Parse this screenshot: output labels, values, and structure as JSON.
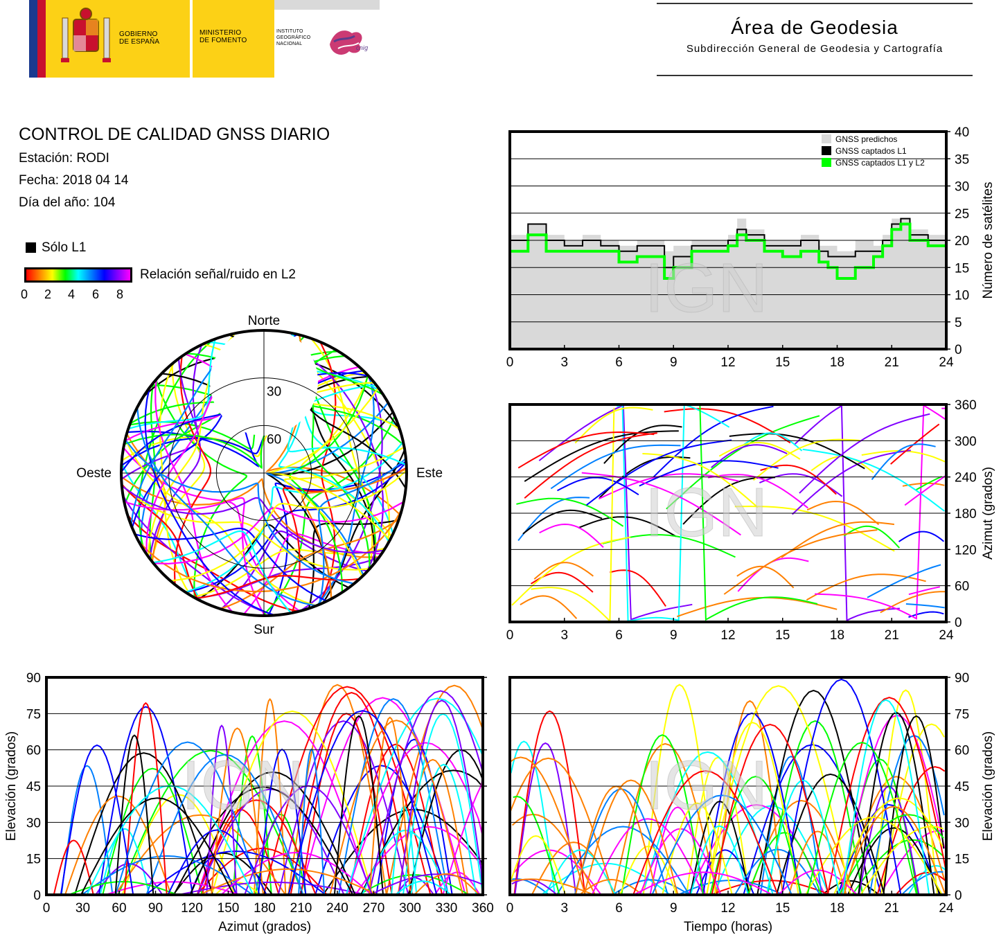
{
  "header": {
    "gov_logo": {
      "gobierno": "GOBIERNO\nDE ESPAÑA",
      "ministerio": "MINISTERIO\nDE FOMENTO",
      "instituto": "INSTITUTO\nGEOGRÁFICO\nNACIONAL",
      "cnig": "cnig"
    },
    "area_title": "Área de Geodesia",
    "area_subtitle": "Subdirección General de Geodesia y Cartografía"
  },
  "report": {
    "title": "CONTROL DE CALIDAD GNSS DIARIO",
    "station": "Estación: RODI",
    "date": "Fecha: 2018 04 14",
    "doy": "Día del año: 104",
    "l1_only_label": "Sólo L1",
    "snr_label": "Relación señal/ruido en L2",
    "snr_ticks": [
      "0",
      "2",
      "4",
      "6",
      "8"
    ],
    "snr_colors": [
      "#ff0000",
      "#ff8000",
      "#ffff00",
      "#00ff00",
      "#00ffff",
      "#0080ff",
      "#0000ff",
      "#8000ff",
      "#ff00ff"
    ]
  },
  "watermark": "IGN",
  "chart_data": [
    {
      "id": "satellite-count",
      "type": "area",
      "xlabel": "",
      "ylabel": "Número de satélites",
      "xlim": [
        0,
        24
      ],
      "ylim": [
        0,
        40
      ],
      "xticks": [
        "0",
        "3",
        "6",
        "9",
        "12",
        "15",
        "18",
        "21",
        "24"
      ],
      "yticks": [
        "0",
        "5",
        "10",
        "15",
        "20",
        "25",
        "30",
        "35",
        "40"
      ],
      "grid": "horizontal",
      "legend_position": "top-right",
      "legend": [
        "GNSS predichos",
        "GNSS captados L1",
        "GNSS captados L1 y L2"
      ],
      "colors": {
        "predicted": "#d9d9d9",
        "l1": "#000000",
        "l1l2": "#00ff00"
      },
      "x": [
        0,
        1,
        2,
        3,
        4,
        5,
        6,
        7,
        8,
        8.5,
        9,
        10,
        11,
        12,
        12.5,
        13,
        14,
        15,
        16,
        17,
        17.5,
        18,
        19,
        20,
        20.5,
        21,
        21.5,
        22,
        23,
        24
      ],
      "series": [
        {
          "name": "GNSS predichos",
          "values": [
            21,
            23,
            21,
            20,
            21,
            20,
            19,
            20,
            20,
            18,
            19,
            20,
            20,
            21,
            24,
            22,
            20,
            20,
            21,
            19,
            19,
            18,
            20,
            19,
            21,
            24,
            24,
            22,
            21,
            21
          ]
        },
        {
          "name": "GNSS captados L1",
          "values": [
            20,
            23,
            20,
            19,
            20,
            19,
            18,
            19,
            19,
            15,
            17,
            19,
            19,
            20,
            22,
            21,
            19,
            19,
            20,
            18,
            17,
            17,
            18,
            18,
            20,
            23,
            24,
            21,
            20,
            20
          ]
        },
        {
          "name": "GNSS captados L1 y L2",
          "values": [
            18,
            21,
            18,
            18,
            18,
            18,
            16,
            17,
            17,
            13,
            15,
            18,
            18,
            19,
            21,
            20,
            18,
            17,
            18,
            16,
            15,
            13,
            15,
            17,
            19,
            22,
            23,
            20,
            19,
            19
          ]
        }
      ]
    },
    {
      "id": "skyplot",
      "type": "scatter",
      "projection": "polar",
      "cardinal_labels": {
        "north": "Norte",
        "south": "Sur",
        "west": "Oeste",
        "east": "Este"
      },
      "elevation_rings": [
        "30",
        "60"
      ],
      "description_free": true
    },
    {
      "id": "azimuth-time",
      "type": "scatter",
      "xlabel": "",
      "ylabel": "Azimut (grados)",
      "xlim": [
        0,
        24
      ],
      "ylim": [
        0,
        360
      ],
      "xticks": [
        "0",
        "3",
        "6",
        "9",
        "12",
        "15",
        "18",
        "21",
        "24"
      ],
      "yticks": [
        "0",
        "60",
        "120",
        "180",
        "240",
        "300",
        "360"
      ],
      "grid": "horizontal"
    },
    {
      "id": "elevation-azimuth",
      "type": "scatter",
      "xlabel": "Azimut (grados)",
      "ylabel": "Elevación (grados)",
      "xlim": [
        0,
        360
      ],
      "ylim": [
        0,
        90
      ],
      "xticks": [
        "0",
        "30",
        "60",
        "90",
        "120",
        "150",
        "180",
        "210",
        "240",
        "270",
        "300",
        "330",
        "360"
      ],
      "yticks": [
        "0",
        "15",
        "30",
        "45",
        "60",
        "75",
        "90"
      ],
      "grid": "horizontal"
    },
    {
      "id": "elevation-time",
      "type": "scatter",
      "xlabel": "Tiempo (horas)",
      "ylabel": "Elevación (grados)",
      "xlim": [
        0,
        24
      ],
      "ylim": [
        0,
        90
      ],
      "xticks": [
        "0",
        "3",
        "6",
        "9",
        "12",
        "15",
        "18",
        "21",
        "24"
      ],
      "yticks": [
        "0",
        "15",
        "30",
        "45",
        "60",
        "75",
        "90"
      ],
      "grid": "horizontal"
    }
  ]
}
